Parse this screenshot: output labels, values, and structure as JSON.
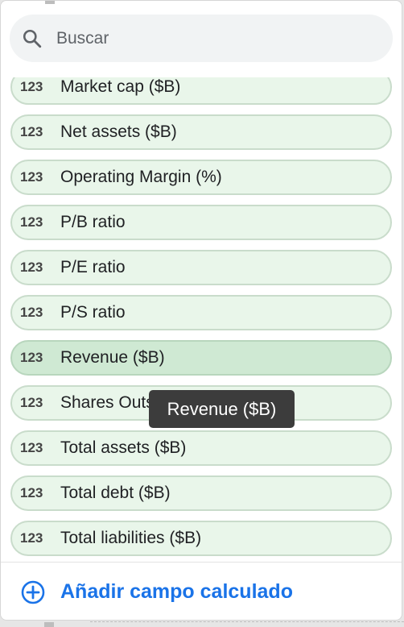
{
  "search": {
    "placeholder": "Buscar"
  },
  "fields": [
    {
      "type": "123",
      "label": "Market cap ($B)"
    },
    {
      "type": "123",
      "label": "Net assets ($B)"
    },
    {
      "type": "123",
      "label": "Operating Margin (%)"
    },
    {
      "type": "123",
      "label": "P/B ratio"
    },
    {
      "type": "123",
      "label": "P/E ratio"
    },
    {
      "type": "123",
      "label": "P/S ratio"
    },
    {
      "type": "123",
      "label": "Revenue ($B)"
    },
    {
      "type": "123",
      "label": "Shares Outs"
    },
    {
      "type": "123",
      "label": "Total assets ($B)"
    },
    {
      "type": "123",
      "label": "Total debt ($B)"
    },
    {
      "type": "123",
      "label": "Total liabilities ($B)"
    }
  ],
  "tooltip": {
    "text": "Revenue ($B)"
  },
  "footer": {
    "add_label": "Añadir campo calculado"
  },
  "colors": {
    "accent": "#1a73e8",
    "chip_bg": "#e9f6ea",
    "chip_active_bg": "#cfe9d3"
  }
}
